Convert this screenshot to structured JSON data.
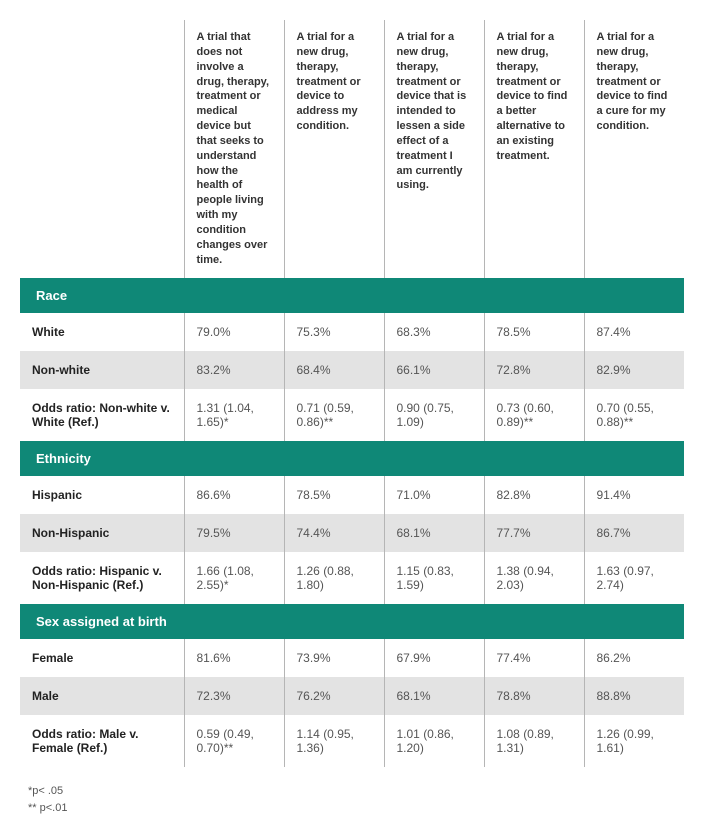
{
  "colors": {
    "section_bg": "#0f8877",
    "alt_row_bg": "#e3e3e3",
    "border": "#b5b5b5",
    "text": "#333333",
    "muted_text": "#555555"
  },
  "table": {
    "column_widths": {
      "label": 164,
      "data": 100
    },
    "headers": [
      "",
      "A trial that does not involve a drug, therapy, treatment or medical device but that seeks to understand how the health of people living with my condition changes over time.",
      "A trial for a new drug, therapy, treatment or device to address my condition.",
      "A trial for a new drug, therapy, treatment or device that is intended to lessen a side effect of a treatment I am currently using.",
      "A trial for a new drug, therapy, treatment or device to find a better alternative to an existing treatment.",
      "A trial for a new drug, therapy, treatment or device to find a cure for my condition."
    ],
    "sections": [
      {
        "title": "Race",
        "rows": [
          {
            "label": "White",
            "cells": [
              "79.0%",
              "75.3%",
              "68.3%",
              "78.5%",
              "87.4%"
            ],
            "alt": false
          },
          {
            "label": "Non-white",
            "cells": [
              "83.2%",
              "68.4%",
              "66.1%",
              "72.8%",
              "82.9%"
            ],
            "alt": true
          },
          {
            "label": "Odds ratio: Non-white v. White (Ref.)",
            "cells": [
              "1.31 (1.04, 1.65)*",
              "0.71 (0.59, 0.86)**",
              "0.90 (0.75, 1.09)",
              "0.73 (0.60, 0.89)**",
              "0.70 (0.55, 0.88)**"
            ],
            "alt": false
          }
        ]
      },
      {
        "title": "Ethnicity",
        "rows": [
          {
            "label": "Hispanic",
            "cells": [
              "86.6%",
              "78.5%",
              "71.0%",
              "82.8%",
              "91.4%"
            ],
            "alt": false
          },
          {
            "label": "Non-Hispanic",
            "cells": [
              "79.5%",
              "74.4%",
              "68.1%",
              "77.7%",
              "86.7%"
            ],
            "alt": true
          },
          {
            "label": "Odds ratio: Hispanic v. Non-Hispanic (Ref.)",
            "cells": [
              "1.66 (1.08, 2.55)*",
              "1.26 (0.88, 1.80)",
              "1.15 (0.83, 1.59)",
              "1.38 (0.94, 2.03)",
              "1.63 (0.97, 2.74)"
            ],
            "alt": false
          }
        ]
      },
      {
        "title": "Sex assigned at birth",
        "rows": [
          {
            "label": "Female",
            "cells": [
              "81.6%",
              "73.9%",
              "67.9%",
              "77.4%",
              "86.2%"
            ],
            "alt": false
          },
          {
            "label": "Male",
            "cells": [
              "72.3%",
              "76.2%",
              "68.1%",
              "78.8%",
              "88.8%"
            ],
            "alt": true
          },
          {
            "label": "Odds ratio: Male v. Female (Ref.)",
            "cells": [
              "0.59 (0.49, 0.70)**",
              "1.14 (0.95, 1.36)",
              "1.01 (0.86, 1.20)",
              "1.08 (0.89, 1.31)",
              "1.26 (0.99, 1.61)"
            ],
            "alt": false
          }
        ]
      }
    ]
  },
  "footnotes": [
    "*p< .05",
    "** p<.01"
  ]
}
